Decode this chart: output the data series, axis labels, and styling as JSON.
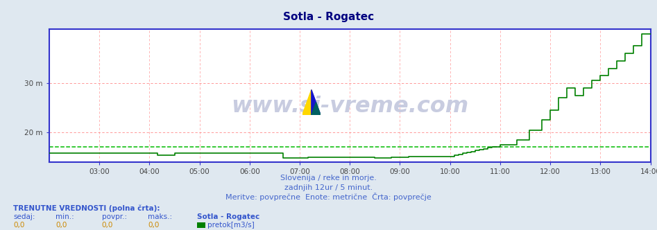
{
  "title": "Sotla - Rogatec",
  "title_color": "#000080",
  "bg_color": "#dfe8f0",
  "plot_bg_color": "#ffffff",
  "yticks": [
    20,
    30
  ],
  "ytick_labels": [
    "20 m",
    "30 m"
  ],
  "ylim": [
    14.0,
    41.0
  ],
  "xlim": [
    0,
    144
  ],
  "xtick_positions": [
    12,
    24,
    36,
    48,
    60,
    72,
    84,
    96,
    108,
    120,
    132,
    144
  ],
  "xtick_labels": [
    "03:00",
    "04:00",
    "05:00",
    "06:00",
    "07:00",
    "08:00",
    "09:00",
    "10:00",
    "11:00",
    "12:00",
    "13:00",
    "14:00"
  ],
  "line_color": "#008000",
  "line_width": 1.2,
  "hline_dashed_y": 17.1,
  "hline_dashed_color": "#00bb00",
  "grid_color_h": "#ff8888",
  "grid_color_v": "#ffaaaa",
  "axis_color": "#3333cc",
  "subtitle1": "Slovenija / reke in morje.",
  "subtitle2": "zadnjih 12ur / 5 minut.",
  "subtitle3": "Meritve: povprečne  Enote: metrične  Črta: povprečje",
  "subtitle_color": "#4466cc",
  "footer_label1": "TRENUTNE VREDNOSTI (polna črta):",
  "footer_cols": [
    "sedaj:",
    "min.:",
    "povpr.:",
    "maks.:"
  ],
  "footer_vals": [
    "0,0",
    "0,0",
    "0,0",
    "0,0"
  ],
  "footer_station": "Sotla - Rogatec",
  "footer_series": "pretok[m3/s]",
  "footer_color": "#3355cc",
  "footer_val_color": "#cc8800",
  "watermark_text": "www.si-vreme.com",
  "watermark_color": "#c8cce0"
}
